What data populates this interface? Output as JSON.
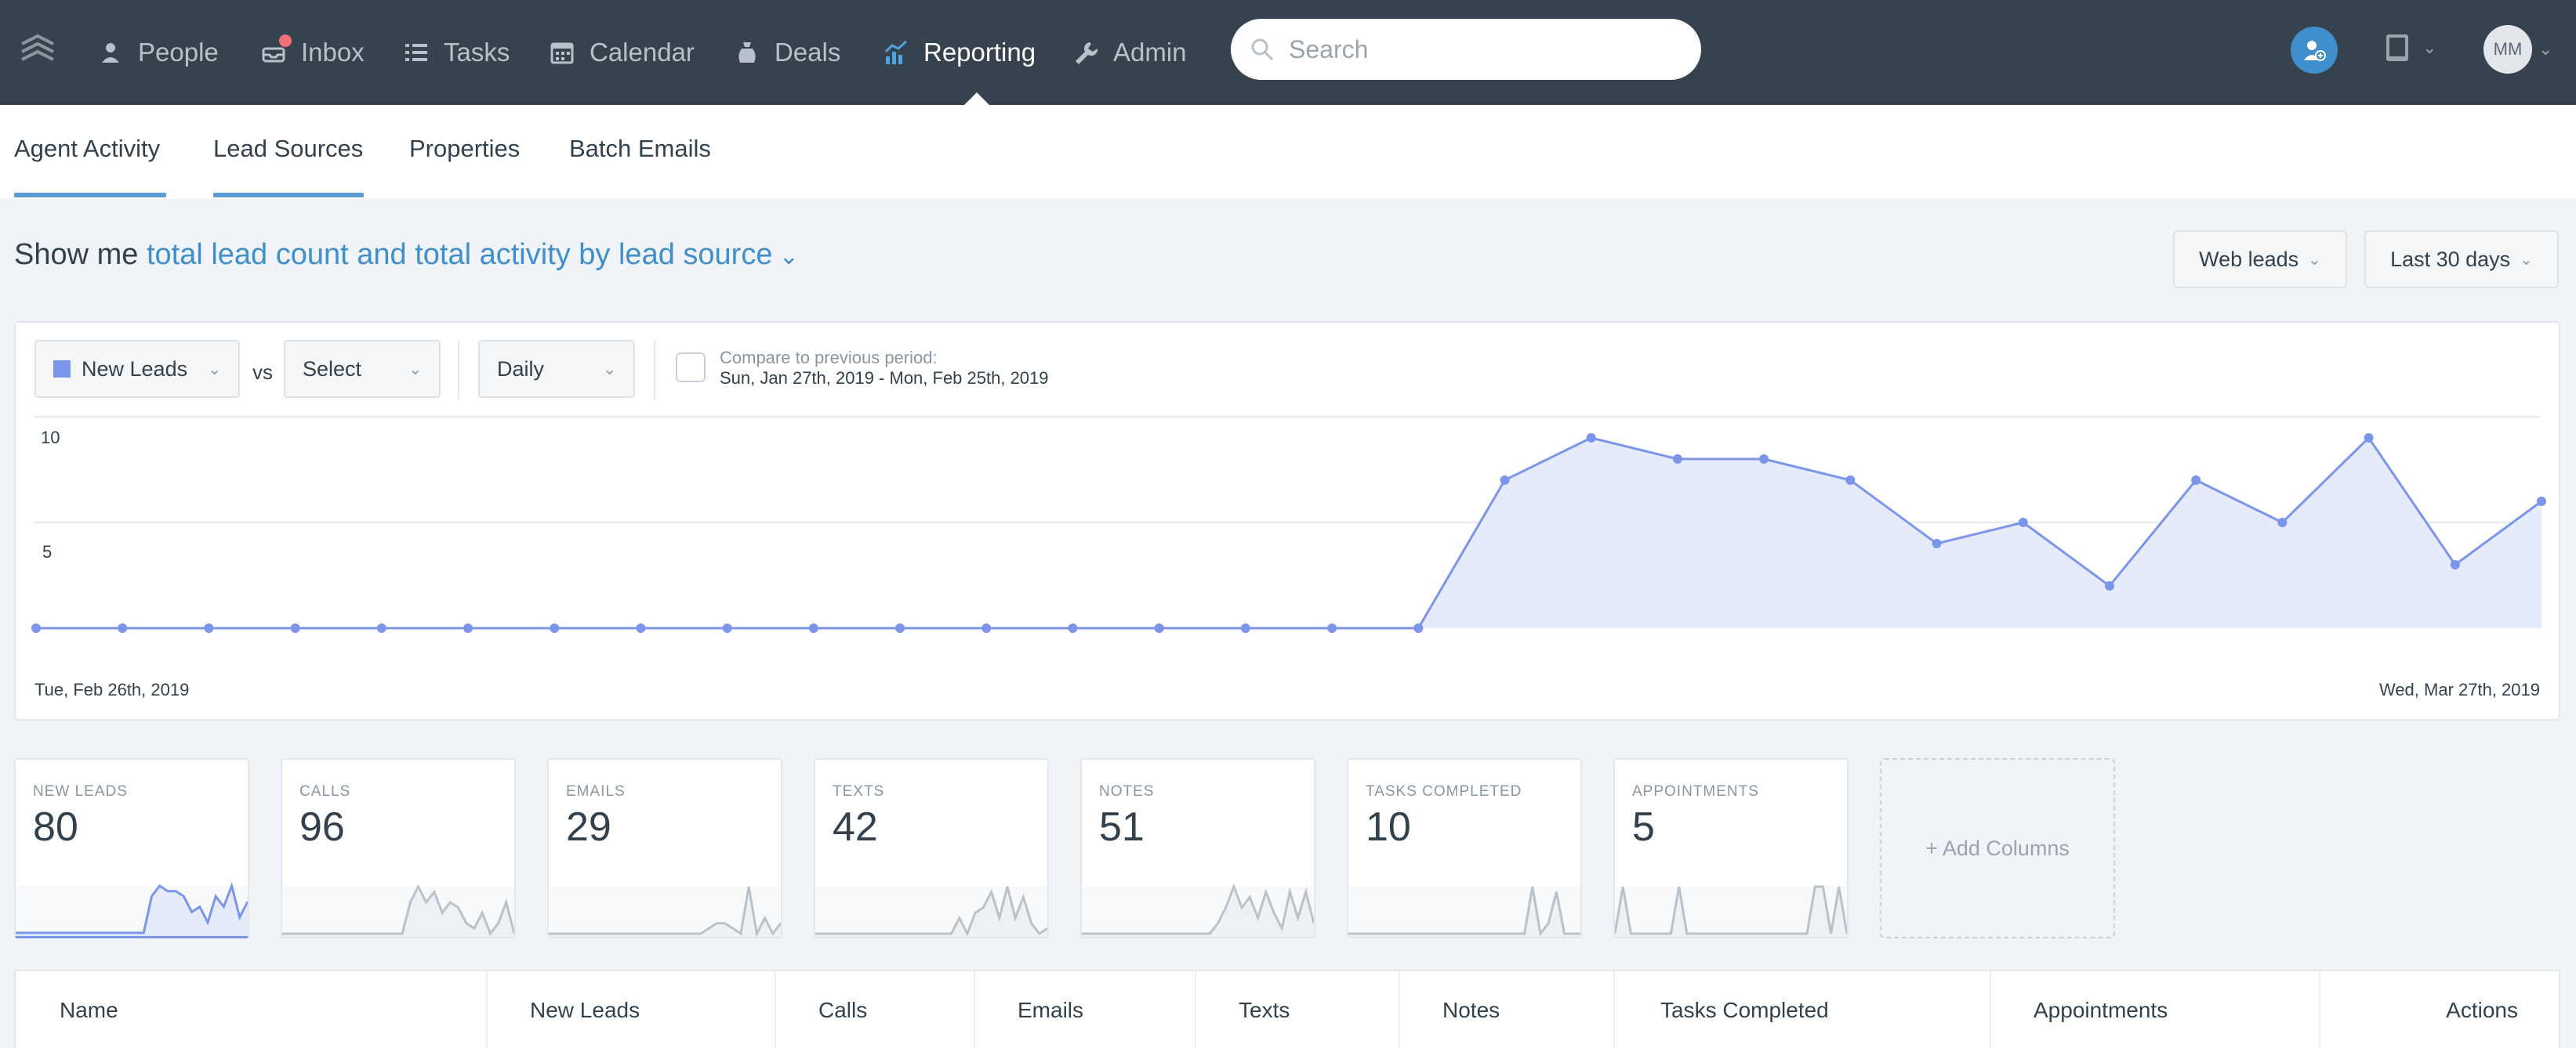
{
  "nav": {
    "items": [
      {
        "label": "People",
        "icon": "people-icon"
      },
      {
        "label": "Inbox",
        "icon": "inbox-icon"
      },
      {
        "label": "Tasks",
        "icon": "tasks-icon"
      },
      {
        "label": "Calendar",
        "icon": "calendar-icon"
      },
      {
        "label": "Deals",
        "icon": "deals-icon"
      },
      {
        "label": "Reporting",
        "icon": "reporting-icon",
        "active": true
      },
      {
        "label": "Admin",
        "icon": "wrench-icon"
      }
    ],
    "search_placeholder": "Search",
    "avatar_initials": "MM"
  },
  "subnav": {
    "tabs": [
      "Agent Activity",
      "Lead Sources",
      "Properties",
      "Batch Emails"
    ]
  },
  "query": {
    "prefix": "Show me",
    "link": "total lead count and total activity by lead source",
    "source_filter": "Web leads",
    "range_filter": "Last 30 days"
  },
  "chart_controls": {
    "metric": "New Leads",
    "vs": "vs",
    "compare_select": "Select",
    "interval": "Daily",
    "compare_label": "Compare to previous period:",
    "compare_range": "Sun, Jan 27th, 2019 - Mon, Feb 25th, 2019"
  },
  "chart_data": {
    "type": "area",
    "series": [
      {
        "values": [
          0,
          0,
          0,
          0,
          0,
          0,
          0,
          0,
          0,
          0,
          0,
          0,
          0,
          0,
          0,
          0,
          0,
          7,
          9,
          8,
          8,
          7,
          4,
          5,
          2,
          7,
          5,
          9,
          3,
          6
        ]
      }
    ],
    "y_ticks": [
      "5",
      "10"
    ],
    "ylim": [
      0,
      10
    ],
    "x_start_label": "Tue, Feb 26th, 2019",
    "x_end_label": "Wed, Mar 27th, 2019",
    "grid": true,
    "color": "#7b95ea",
    "fill": "#e6ebfb"
  },
  "stats": [
    {
      "title": "NEW LEADS",
      "value": "80",
      "spark": [
        0,
        0,
        0,
        0,
        0,
        0,
        0,
        0,
        0,
        0,
        0,
        0,
        0,
        0,
        0,
        0,
        0,
        7,
        9,
        8,
        8,
        7,
        4,
        5,
        2,
        7,
        5,
        9,
        3,
        6
      ]
    },
    {
      "title": "CALLS",
      "value": "96",
      "spark": [
        0,
        0,
        0,
        0,
        0,
        0,
        0,
        0,
        0,
        0,
        0,
        0,
        0,
        0,
        0,
        0,
        6,
        9,
        6,
        8,
        4,
        6,
        5,
        2,
        1,
        4,
        0,
        2,
        6,
        0
      ]
    },
    {
      "title": "EMAILS",
      "value": "29",
      "spark": [
        0,
        0,
        0,
        0,
        0,
        0,
        0,
        0,
        0,
        0,
        0,
        0,
        0,
        0,
        0,
        0,
        0,
        0,
        0,
        0,
        1,
        2,
        2,
        1,
        0,
        9,
        0,
        3,
        0,
        2
      ]
    },
    {
      "title": "TEXTS",
      "value": "42",
      "spark": [
        0,
        0,
        0,
        0,
        0,
        0,
        0,
        0,
        0,
        0,
        0,
        0,
        0,
        0,
        0,
        0,
        0,
        0,
        3,
        0,
        4,
        5,
        8,
        3,
        9,
        3,
        7,
        2,
        0,
        1
      ]
    },
    {
      "title": "NOTES",
      "value": "51",
      "spark": [
        0,
        0,
        0,
        0,
        0,
        0,
        0,
        0,
        0,
        0,
        0,
        0,
        0,
        0,
        0,
        0,
        0,
        2,
        5,
        9,
        5,
        7,
        3,
        8,
        4,
        1,
        8,
        3,
        8,
        2
      ]
    },
    {
      "title": "TASKS COMPLETED",
      "value": "10",
      "spark": [
        0,
        0,
        0,
        0,
        0,
        0,
        0,
        0,
        0,
        0,
        0,
        0,
        0,
        0,
        0,
        0,
        0,
        0,
        0,
        0,
        0,
        0,
        0,
        9,
        0,
        2,
        8,
        0,
        0,
        0
      ]
    },
    {
      "title": "APPOINTMENTS",
      "value": "5",
      "spark": [
        0,
        9,
        0,
        0,
        0,
        0,
        0,
        0,
        9,
        0,
        0,
        0,
        0,
        0,
        0,
        0,
        0,
        0,
        0,
        0,
        0,
        0,
        0,
        0,
        0,
        9,
        9,
        0,
        9,
        0
      ]
    }
  ],
  "add_columns": "+ Add Columns",
  "table": {
    "headers": [
      "Name",
      "New Leads",
      "Calls",
      "Emails",
      "Texts",
      "Notes",
      "Tasks Completed",
      "Appointments",
      "Actions"
    ]
  }
}
